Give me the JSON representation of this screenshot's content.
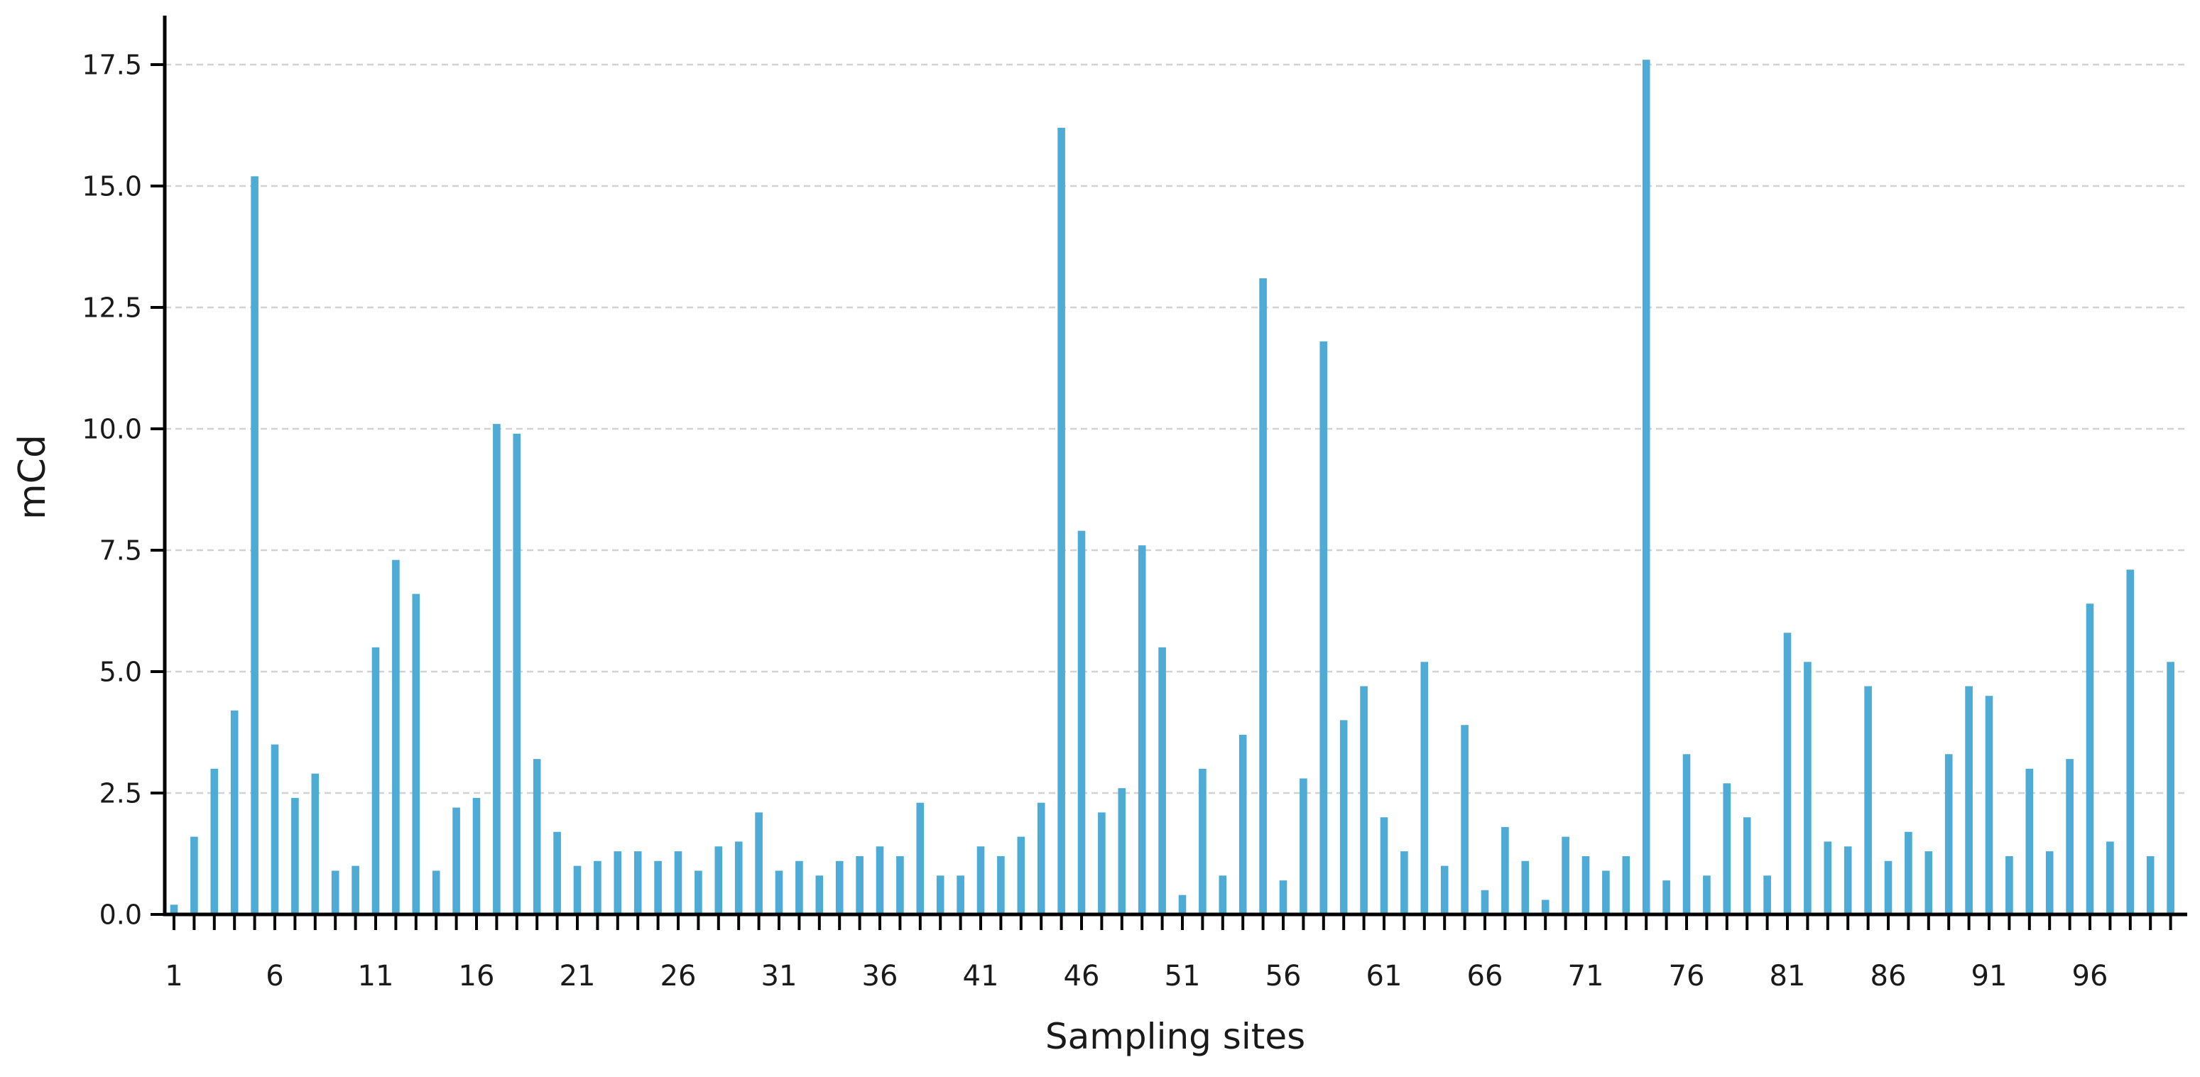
{
  "chart_data": {
    "type": "bar",
    "title": "",
    "xlabel": "Sampling sites",
    "ylabel": "mCd",
    "x_start": 1,
    "x_step": 1,
    "n_bars": 100,
    "values": [
      0.2,
      1.6,
      3.0,
      4.2,
      15.2,
      3.5,
      2.4,
      2.9,
      0.9,
      1.0,
      5.5,
      7.3,
      6.6,
      0.9,
      2.2,
      2.4,
      10.1,
      9.9,
      3.2,
      1.7,
      1.0,
      1.1,
      1.3,
      1.3,
      1.1,
      1.3,
      0.9,
      1.4,
      1.5,
      2.1,
      0.9,
      1.1,
      0.8,
      1.1,
      1.2,
      1.4,
      1.2,
      2.3,
      0.8,
      0.8,
      1.4,
      1.2,
      1.6,
      2.3,
      16.2,
      7.9,
      2.1,
      2.6,
      7.6,
      5.5,
      0.4,
      3.0,
      0.8,
      3.7,
      13.1,
      0.7,
      2.8,
      11.8,
      4.0,
      4.7,
      2.0,
      1.3,
      5.2,
      1.0,
      3.9,
      0.5,
      1.8,
      1.1,
      0.3,
      1.6,
      1.2,
      0.9,
      1.2,
      17.6,
      0.7,
      3.3,
      0.8,
      2.7,
      2.0,
      0.8,
      5.8,
      5.2,
      1.5,
      1.4,
      4.7,
      1.1,
      1.7,
      1.3,
      3.3,
      4.7,
      4.5,
      1.2,
      3.0,
      1.3,
      3.2,
      6.4,
      1.5,
      7.1,
      1.2,
      5.2
    ],
    "xtick_label_values": [
      1,
      6,
      11,
      16,
      21,
      26,
      31,
      36,
      41,
      46,
      51,
      56,
      61,
      66,
      71,
      76,
      81,
      86,
      91,
      96
    ],
    "ytick_values": [
      0,
      2.5,
      5,
      7.5,
      10,
      12.5,
      15,
      17.5
    ],
    "ytick_labels": [
      "0.0",
      "2.5",
      "5.0",
      "7.5",
      "10.0",
      "12.5",
      "15.0",
      "17.5"
    ],
    "ylim": [
      0,
      18.5
    ],
    "grid": "horizontal-dashed",
    "legend": "none",
    "colors": {
      "bar": "#4dabd5",
      "grid": "#d2d2d2",
      "axis": "#000000",
      "text": "#1a1a1a"
    }
  }
}
